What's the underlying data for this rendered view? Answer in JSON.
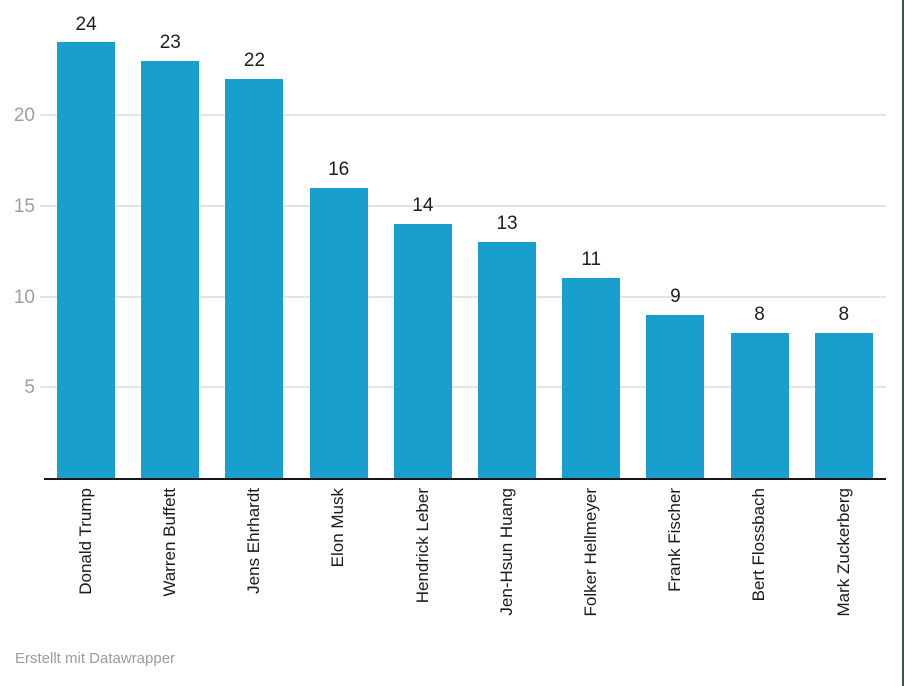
{
  "chart_data": {
    "type": "bar",
    "title": "",
    "xlabel": "",
    "ylabel": "",
    "categories": [
      "Donald Trump",
      "Warren Buffett",
      "Jens Ehrhardt",
      "Elon Musk",
      "Hendrick Leber",
      "Jen-Hsun Huang",
      "Folker Hellmeyer",
      "Frank Fischer",
      "Bert Flossbach",
      "Mark Zuckerberg"
    ],
    "values": [
      24,
      23,
      22,
      16,
      14,
      13,
      11,
      9,
      8,
      8
    ],
    "bar_labels": [
      "24",
      "23",
      "22",
      "16",
      "14",
      "13",
      "11",
      "9",
      "8",
      "8"
    ],
    "y_ticks": [
      5,
      10,
      15,
      20
    ],
    "ylim": [
      0,
      26
    ],
    "grid": "horizontal-only",
    "legend": "none",
    "bar_color": "#189fce"
  },
  "colors": {
    "bar": "#189fce",
    "axis_line": "#161616",
    "gridline": "#e4e4e4",
    "y_tick_text": "#9e9e9e",
    "x_label_text": "#1a1a1a",
    "value_label_text": "#1d1d1d",
    "footer_text": "#9b9b9b",
    "edge_border": "#3e5c44"
  },
  "footer": {
    "credit": "Erstellt mit Datawrapper"
  }
}
